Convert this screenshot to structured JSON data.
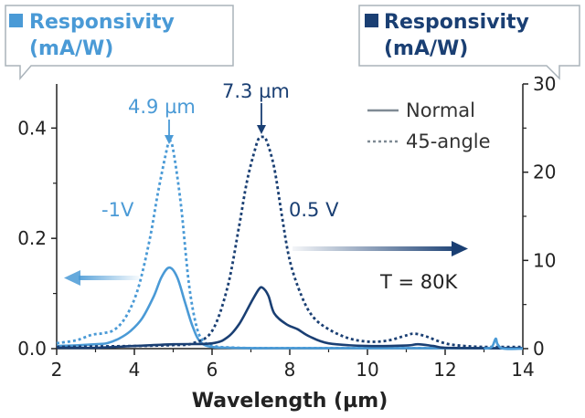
{
  "colors": {
    "left_series": "#4a9ad6",
    "right_series": "#1a3f73",
    "legend_line": "#7f8a94",
    "axis": "#222222"
  },
  "chart_data": {
    "type": "line",
    "xlabel": "Wavelength (µm)",
    "xlim": [
      2,
      14
    ],
    "x_ticks": [
      2,
      4,
      6,
      8,
      10,
      12,
      14
    ],
    "left_axis": {
      "label": "Responsivity (mA/W)",
      "ylim": [
        0,
        0.48
      ],
      "ticks": [
        0.0,
        0.2,
        0.4
      ],
      "tick_labels": [
        "0.0",
        "0.2",
        "0.4"
      ]
    },
    "right_axis": {
      "label": "Responsivity (mA/W)",
      "ylim": [
        0,
        30
      ],
      "ticks": [
        0,
        10,
        20,
        30
      ],
      "tick_labels": [
        "0",
        "10",
        "20",
        "30"
      ]
    },
    "legend": {
      "placement": "top-right",
      "entries": [
        "Normal",
        "45-angle"
      ]
    },
    "annotations": {
      "peak_left": "4.9 µm",
      "peak_right": "7.3 µm",
      "bias_left": "-1V",
      "bias_right": "0.5 V",
      "temperature": "T = 80K"
    },
    "series": [
      {
        "axis": "left",
        "style": "solid",
        "color_key": "left_series",
        "x": [
          2.0,
          2.5,
          3.0,
          3.3,
          3.6,
          3.9,
          4.2,
          4.5,
          4.7,
          4.9,
          5.1,
          5.3,
          5.5,
          5.7,
          6.0,
          6.5,
          7.0,
          8.0,
          10.0,
          12.0,
          14.0
        ],
        "y": [
          0.005,
          0.006,
          0.008,
          0.01,
          0.018,
          0.032,
          0.055,
          0.095,
          0.13,
          0.147,
          0.13,
          0.085,
          0.04,
          0.012,
          0.003,
          0.0015,
          0.001,
          0.001,
          0.001,
          0.001,
          0.001
        ]
      },
      {
        "axis": "left",
        "style": "dashed",
        "color_key": "left_series",
        "x": [
          2.0,
          2.5,
          2.9,
          3.2,
          3.5,
          3.8,
          4.1,
          4.4,
          4.6,
          4.8,
          4.9,
          5.0,
          5.2,
          5.4,
          5.6,
          5.8,
          6.1,
          6.5,
          7.0,
          8.0,
          10.0,
          12.0,
          14.0
        ],
        "y": [
          0.01,
          0.015,
          0.025,
          0.028,
          0.035,
          0.06,
          0.11,
          0.2,
          0.28,
          0.35,
          0.375,
          0.36,
          0.26,
          0.12,
          0.04,
          0.012,
          0.004,
          0.002,
          0.001,
          0.001,
          0.001,
          0.001,
          0.001
        ]
      },
      {
        "axis": "right",
        "style": "solid",
        "color_key": "right_series",
        "x": [
          2.0,
          3.0,
          4.0,
          5.0,
          6.0,
          6.4,
          6.7,
          7.0,
          7.2,
          7.3,
          7.45,
          7.6,
          7.9,
          8.2,
          8.5,
          9.0,
          10.0,
          11.0,
          11.3,
          11.7,
          12.0,
          13.0,
          14.0
        ],
        "y": [
          0.1,
          0.1,
          0.3,
          0.5,
          0.6,
          1.3,
          2.8,
          5.2,
          6.7,
          6.9,
          6.0,
          4.0,
          2.8,
          2.2,
          1.4,
          0.6,
          0.3,
          0.35,
          0.5,
          0.3,
          0.1,
          0.05,
          0.05
        ]
      },
      {
        "axis": "right",
        "style": "dashed",
        "color_key": "right_series",
        "x": [
          2.0,
          4.0,
          5.0,
          5.5,
          6.0,
          6.4,
          6.7,
          6.9,
          7.1,
          7.2,
          7.3,
          7.4,
          7.6,
          7.8,
          8.0,
          8.3,
          8.6,
          9.0,
          9.5,
          10.0,
          10.5,
          11.0,
          11.2,
          11.5,
          12.0,
          12.5,
          13.0,
          14.0
        ],
        "y": [
          0.2,
          0.3,
          0.4,
          0.6,
          2.0,
          7.0,
          14.0,
          19.0,
          22.5,
          23.8,
          24.0,
          23.6,
          20.5,
          15.0,
          10.0,
          6.0,
          3.6,
          2.2,
          1.2,
          0.8,
          0.9,
          1.5,
          1.7,
          1.4,
          0.6,
          0.3,
          0.2,
          0.2
        ]
      },
      {
        "axis": "left",
        "style": "solid",
        "color_key": "left_series",
        "x": [
          13.0,
          13.2,
          13.3,
          13.35,
          13.5,
          14.0
        ],
        "y": [
          0.0,
          0.003,
          0.018,
          0.008,
          0.0,
          0.0
        ]
      }
    ]
  }
}
